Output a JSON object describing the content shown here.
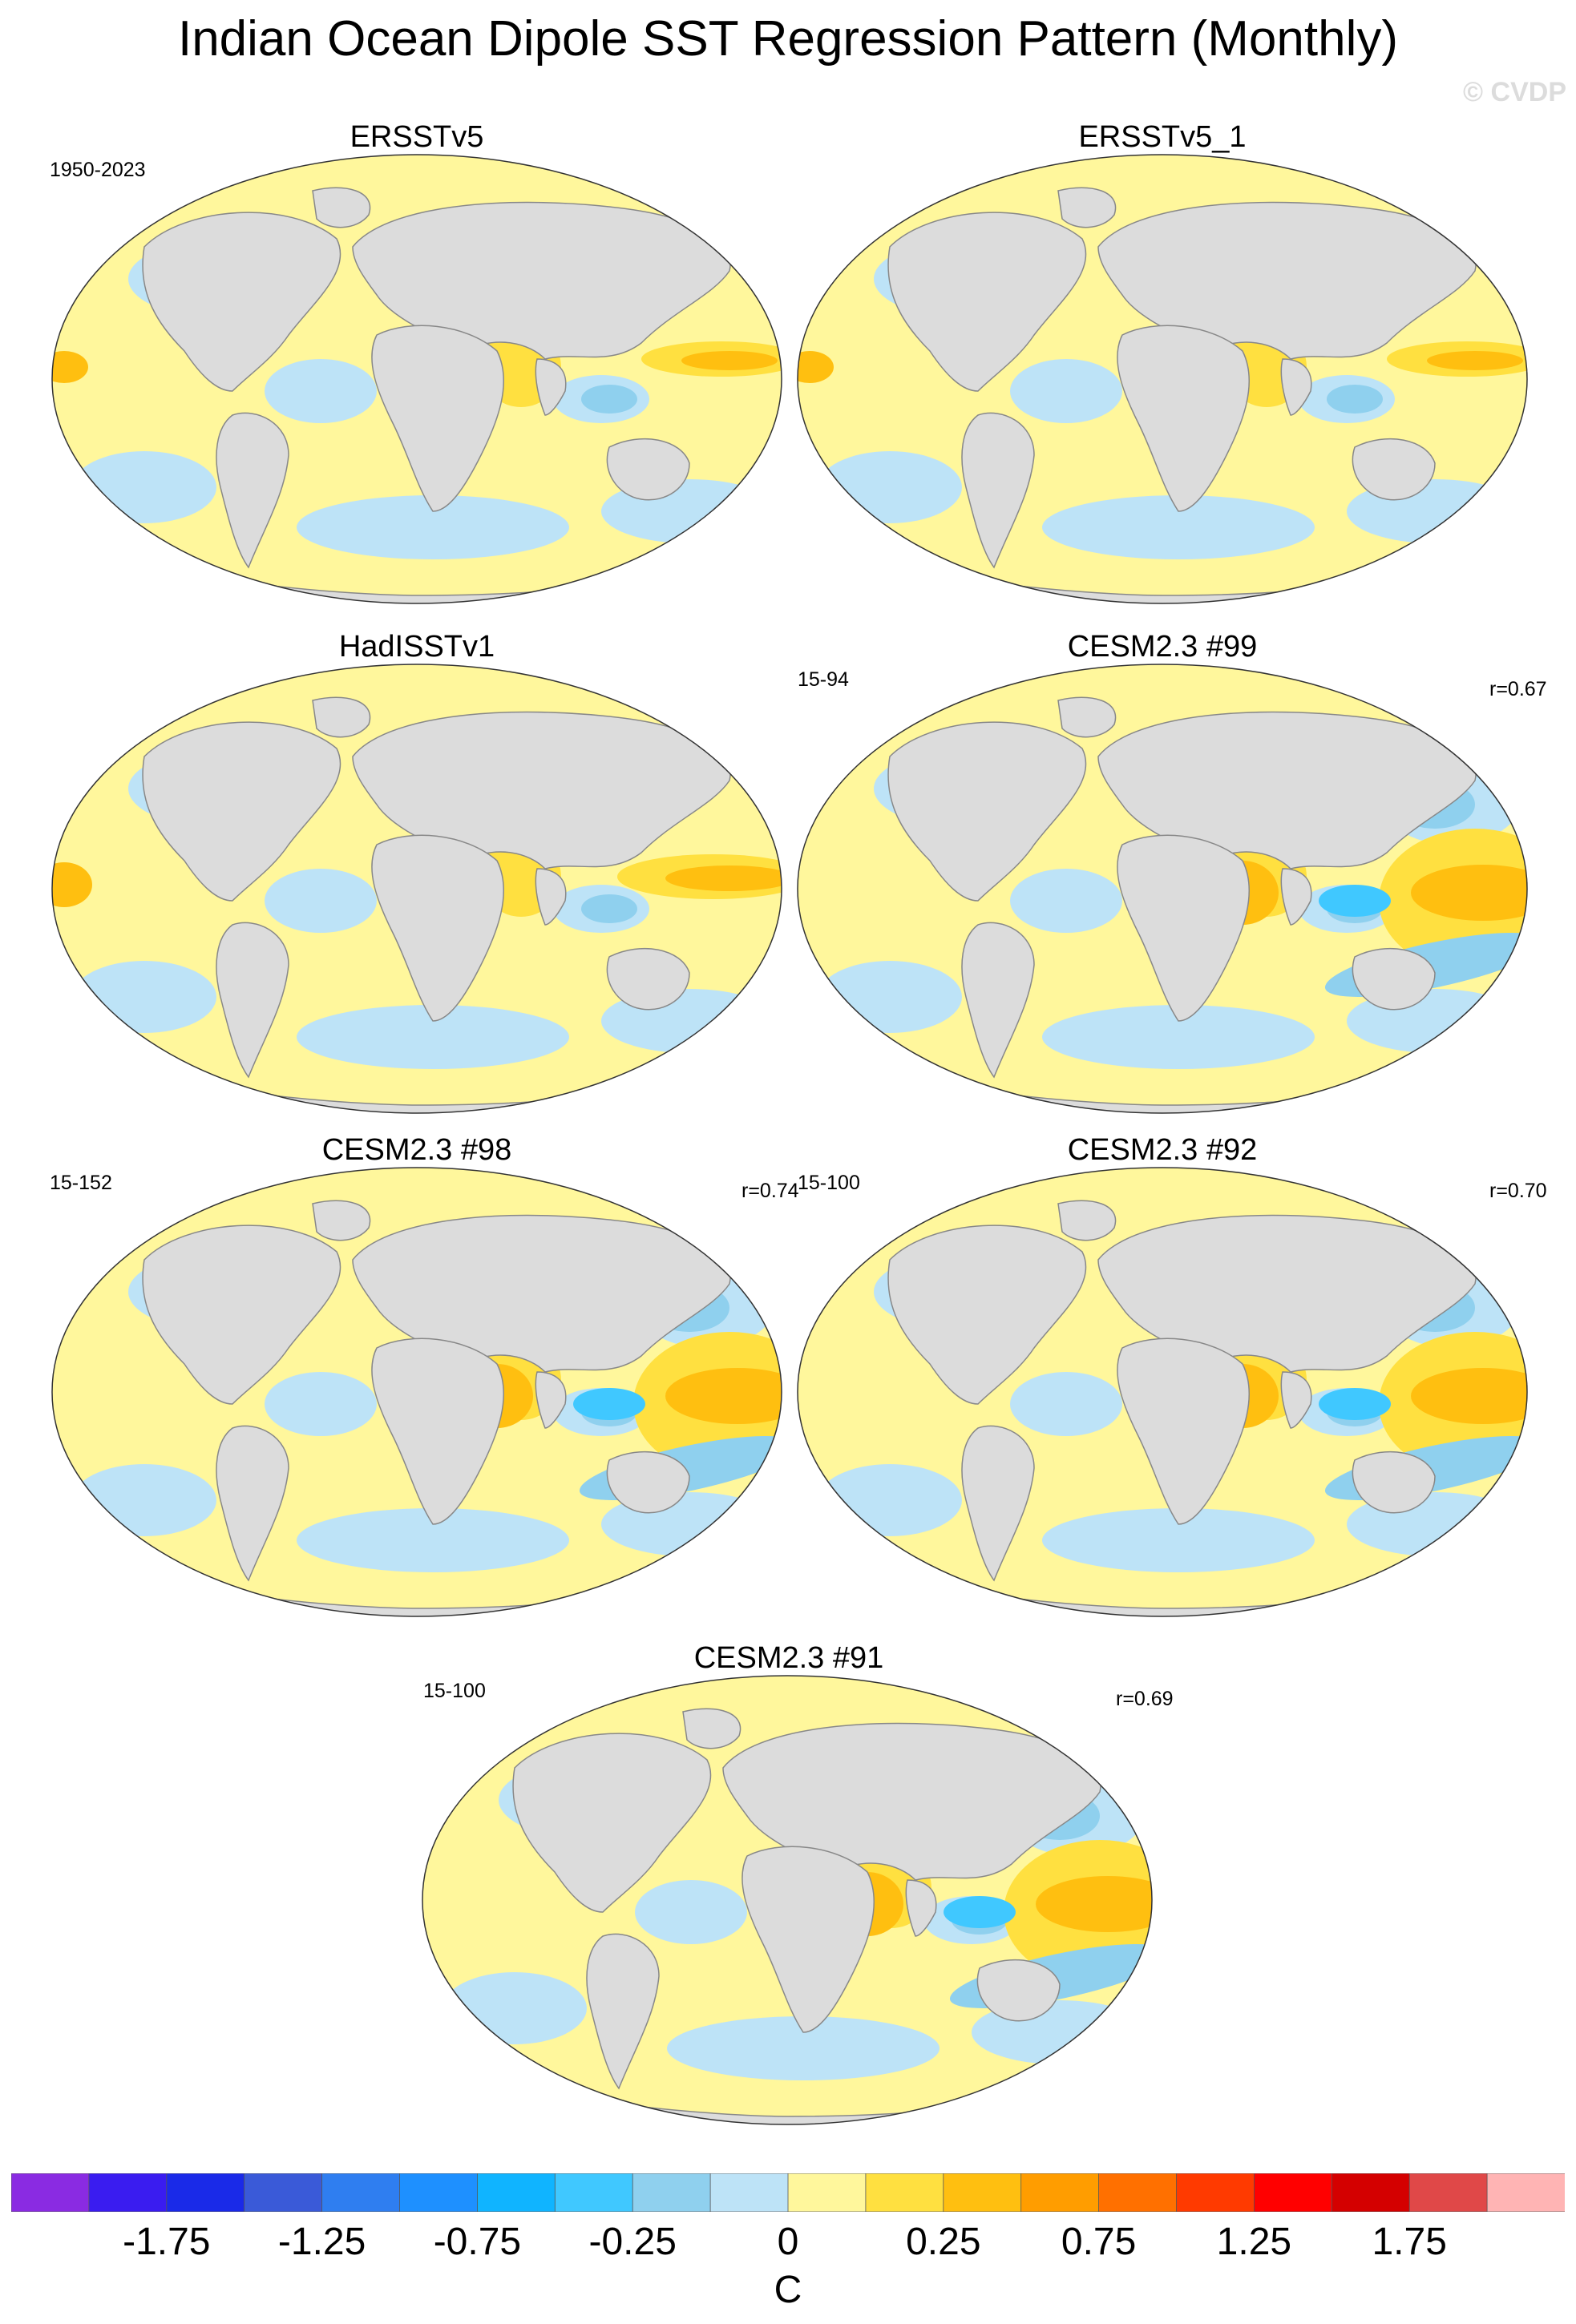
{
  "title": "Indian Ocean Dipole SST Regression Pattern (Monthly)",
  "watermark": "© CVDP",
  "panels": [
    {
      "title": "ERSSTv5",
      "left_note": "1950-2023",
      "right_note": ""
    },
    {
      "title": "ERSSTv5_1",
      "left_note": "",
      "right_note": ""
    },
    {
      "title": "HadISSTv1",
      "left_note": "",
      "right_note": ""
    },
    {
      "title": "CESM2.3 #99",
      "left_note": "15-94",
      "right_note": "r=0.67"
    },
    {
      "title": "CESM2.3 #98",
      "left_note": "15-152",
      "right_note": "r=0.74"
    },
    {
      "title": "CESM2.3 #92",
      "left_note": "15-100",
      "right_note": "r=0.70"
    },
    {
      "title": "CESM2.3 #91",
      "left_note": "15-100",
      "right_note": "r=0.69"
    }
  ],
  "chart_data": {
    "type": "heatmap",
    "colorbar": {
      "unit": "C",
      "tick_labels": [
        "-1.75",
        "-1.25",
        "-0.75",
        "-0.25",
        "0",
        "0.25",
        "0.75",
        "1.25",
        "1.75"
      ],
      "tick_values": [
        -1.75,
        -1.25,
        -0.75,
        -0.25,
        0,
        0.25,
        0.75,
        1.25,
        1.75
      ],
      "colors": [
        "#8a2be2",
        "#3a1cf0",
        "#1a2ae8",
        "#3a5ad8",
        "#2f7ef0",
        "#1e90ff",
        "#10b4ff",
        "#40c8ff",
        "#8fd0ee",
        "#bde3f7",
        "#fff79c",
        "#ffe040",
        "#ffbf10",
        "#ff9d00",
        "#ff7000",
        "#ff3a00",
        "#ff0000",
        "#d40000",
        "#e04848",
        "#ffb4b4"
      ]
    }
  }
}
